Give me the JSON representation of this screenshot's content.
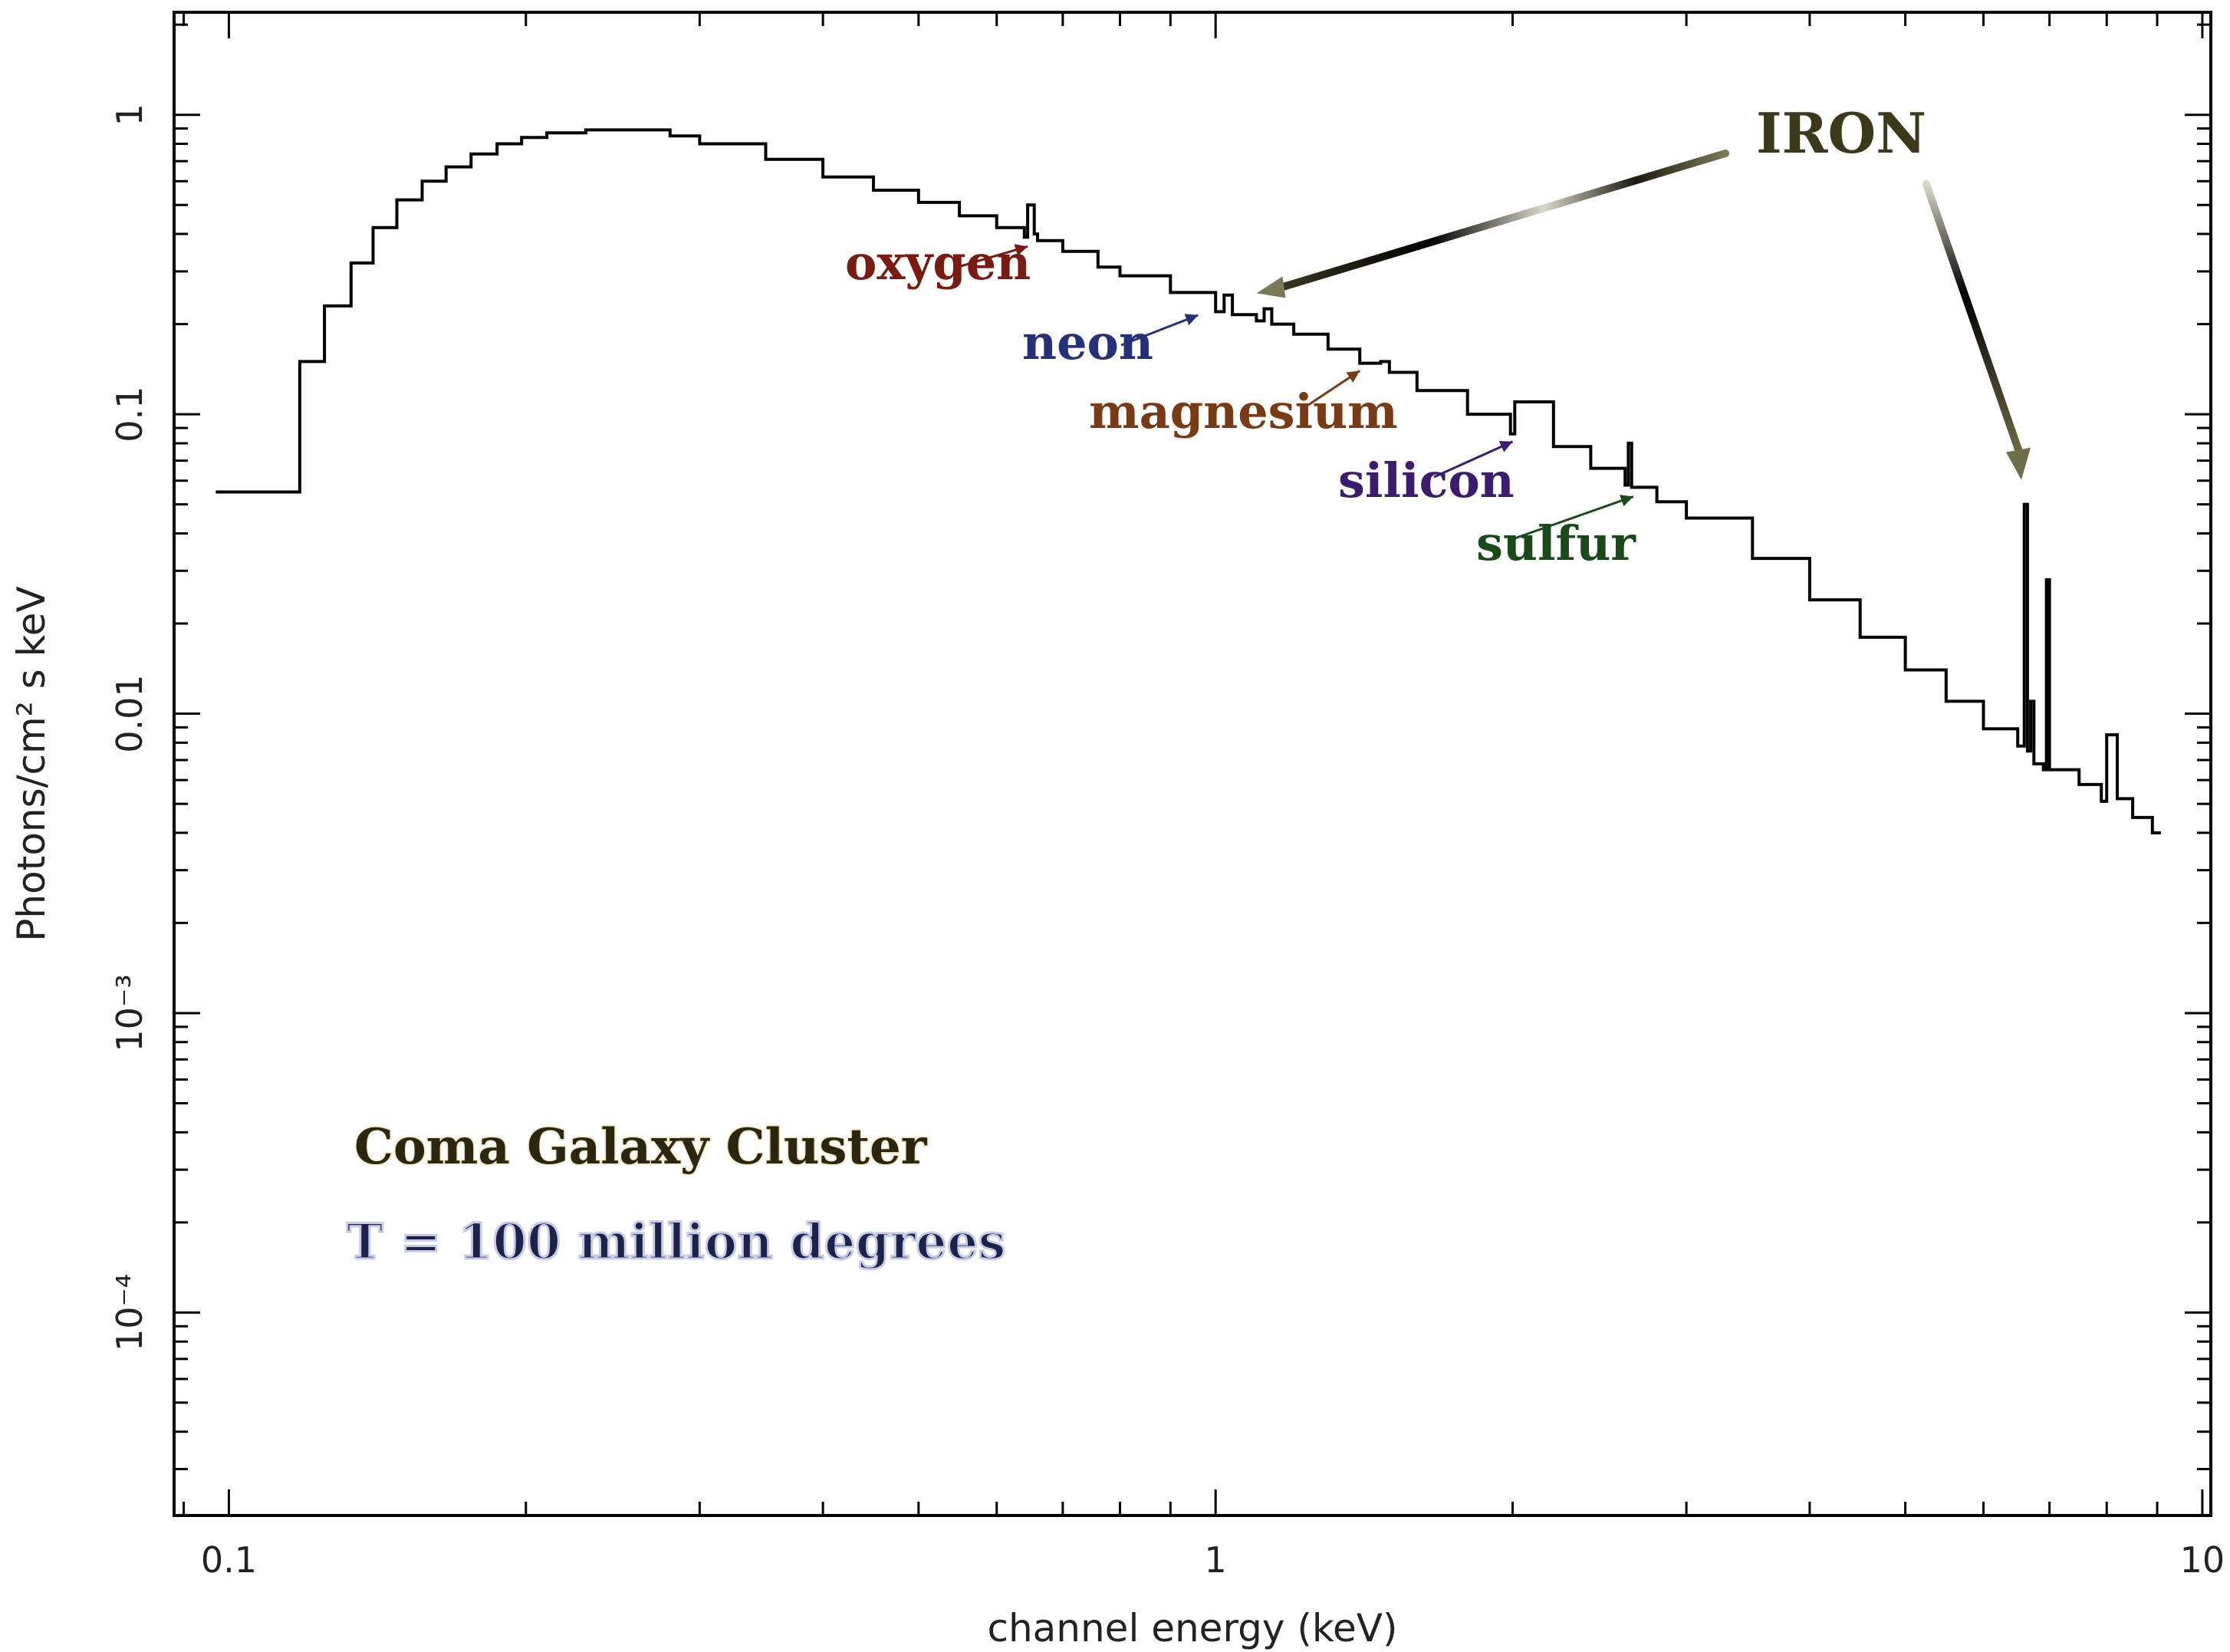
{
  "chart_data": {
    "type": "line",
    "xlabel": "channel energy (keV)",
    "ylabel": "Photons/cm² s keV",
    "xscale": "log",
    "yscale": "log",
    "xlim": [
      0.088,
      10.2
    ],
    "ylim": [
      2.1e-05,
      2.2
    ],
    "x_ticks": [
      {
        "value": 0.1,
        "label": "0.1"
      },
      {
        "value": 1,
        "label": "1"
      },
      {
        "value": 10,
        "label": "10"
      }
    ],
    "y_ticks": [
      {
        "value": 1,
        "label": "1"
      },
      {
        "value": 0.1,
        "label": "0.1"
      },
      {
        "value": 0.01,
        "label": "0.01"
      },
      {
        "value": 0.001,
        "label": "10⁻³"
      },
      {
        "value": 0.0001,
        "label": "10⁻⁴"
      }
    ],
    "series": [
      {
        "style": "step",
        "color": "#000000",
        "x": [
          0.097,
          0.118,
          0.125,
          0.133,
          0.14,
          0.148,
          0.157,
          0.166,
          0.176,
          0.187,
          0.198,
          0.21,
          0.23,
          0.26,
          0.28,
          0.3,
          0.35,
          0.4,
          0.45,
          0.5,
          0.55,
          0.6,
          0.64,
          0.645,
          0.655,
          0.66,
          0.7,
          0.76,
          0.8,
          0.9,
          1.0,
          1.02,
          1.04,
          1.1,
          1.12,
          1.14,
          1.2,
          1.3,
          1.4,
          1.47,
          1.5,
          1.6,
          1.8,
          1.99,
          2.01,
          2.2,
          2.4,
          2.6,
          2.62,
          2.64,
          2.8,
          3.0,
          3.5,
          4.0,
          4.5,
          5.0,
          5.5,
          6.0,
          6.5,
          6.6,
          6.65,
          6.7,
          6.75,
          6.9,
          6.95,
          7.0,
          7.5,
          7.9,
          8.0,
          8.2,
          8.5,
          8.9
        ],
        "y": [
          0.055,
          0.15,
          0.23,
          0.32,
          0.42,
          0.52,
          0.6,
          0.67,
          0.74,
          0.8,
          0.84,
          0.87,
          0.89,
          0.89,
          0.85,
          0.8,
          0.71,
          0.62,
          0.56,
          0.51,
          0.46,
          0.42,
          0.39,
          0.5,
          0.4,
          0.38,
          0.35,
          0.31,
          0.29,
          0.255,
          0.22,
          0.25,
          0.215,
          0.205,
          0.225,
          0.2,
          0.185,
          0.165,
          0.148,
          0.15,
          0.138,
          0.12,
          0.1,
          0.086,
          0.11,
          0.078,
          0.066,
          0.058,
          0.08,
          0.057,
          0.051,
          0.045,
          0.033,
          0.024,
          0.018,
          0.014,
          0.011,
          0.0089,
          0.0078,
          0.05,
          0.0075,
          0.011,
          0.0068,
          0.0065,
          0.028,
          0.0065,
          0.0058,
          0.0051,
          0.0085,
          0.0052,
          0.0045,
          0.004
        ]
      }
    ],
    "annotations": [
      {
        "text": "oxygen",
        "color": "#7a1a10",
        "points_to": [
          0.645,
          0.39
        ]
      },
      {
        "text": "neon",
        "color": "#25307a",
        "points_to": [
          0.96,
          0.23
        ]
      },
      {
        "text": "magnesium",
        "color": "#7a3a14",
        "points_to": [
          1.4,
          0.15
        ]
      },
      {
        "text": "silicon",
        "color": "#3c1c6e",
        "points_to": [
          2.0,
          0.087
        ]
      },
      {
        "text": "sulfur",
        "color": "#1a4a1a",
        "points_to": [
          2.65,
          0.057
        ]
      },
      {
        "text": "IRON",
        "color": "#3a3a1a",
        "points_to": [
          [
            1.1,
            0.22
          ],
          [
            6.65,
            0.05
          ]
        ]
      }
    ],
    "caption": [
      "Coma Galaxy Cluster",
      "T = 100 million degrees"
    ]
  }
}
